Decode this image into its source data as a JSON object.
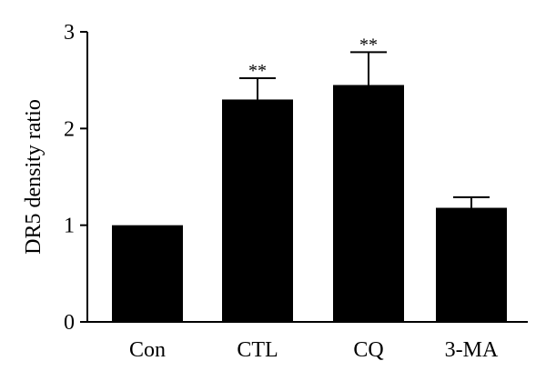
{
  "chart_data": {
    "type": "bar",
    "title": "",
    "xlabel": "",
    "ylabel": "DR5 density ratio",
    "ylim": [
      0,
      3
    ],
    "yticks": [
      "0",
      "1",
      "2",
      "3"
    ],
    "categories": [
      "Con",
      "CTL",
      "CQ",
      "3-MA"
    ],
    "values": [
      1.0,
      2.3,
      2.45,
      1.18
    ],
    "errors": [
      0,
      0.22,
      0.34,
      0.11
    ],
    "significance": [
      "",
      "**",
      "**",
      ""
    ],
    "bar_color": "#000000",
    "grid": false,
    "legend": "none"
  }
}
